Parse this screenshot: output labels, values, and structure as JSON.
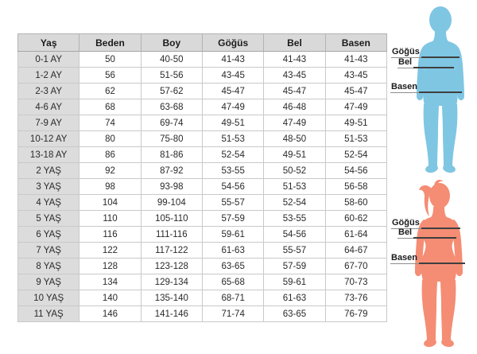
{
  "table": {
    "headers": [
      "Yaş",
      "Beden",
      "Boy",
      "Göğüs",
      "Bel",
      "Basen"
    ],
    "rows": [
      [
        "0-1 AY",
        "50",
        "40-50",
        "41-43",
        "41-43",
        "41-43"
      ],
      [
        "1-2 AY",
        "56",
        "51-56",
        "43-45",
        "43-45",
        "43-45"
      ],
      [
        "2-3 AY",
        "62",
        "57-62",
        "45-47",
        "45-47",
        "45-47"
      ],
      [
        "4-6 AY",
        "68",
        "63-68",
        "47-49",
        "46-48",
        "47-49"
      ],
      [
        "7-9 AY",
        "74",
        "69-74",
        "49-51",
        "47-49",
        "49-51"
      ],
      [
        "10-12 AY",
        "80",
        "75-80",
        "51-53",
        "48-50",
        "51-53"
      ],
      [
        "13-18 AY",
        "86",
        "81-86",
        "52-54",
        "49-51",
        "52-54"
      ],
      [
        "2 YAŞ",
        "92",
        "87-92",
        "53-55",
        "50-52",
        "54-56"
      ],
      [
        "3 YAŞ",
        "98",
        "93-98",
        "54-56",
        "51-53",
        "56-58"
      ],
      [
        "4 YAŞ",
        "104",
        "99-104",
        "55-57",
        "52-54",
        "58-60"
      ],
      [
        "5 YAŞ",
        "110",
        "105-110",
        "57-59",
        "53-55",
        "60-62"
      ],
      [
        "6 YAŞ",
        "116",
        "111-116",
        "59-61",
        "54-56",
        "61-64"
      ],
      [
        "7 YAŞ",
        "122",
        "117-122",
        "61-63",
        "55-57",
        "64-67"
      ],
      [
        "8 YAŞ",
        "128",
        "123-128",
        "63-65",
        "57-59",
        "67-70"
      ],
      [
        "9 YAŞ",
        "134",
        "129-134",
        "65-68",
        "59-61",
        "70-73"
      ],
      [
        "10 YAŞ",
        "140",
        "135-140",
        "68-71",
        "61-63",
        "73-76"
      ],
      [
        "11 YAŞ",
        "146",
        "141-146",
        "71-74",
        "63-65",
        "76-79"
      ]
    ]
  },
  "figures": {
    "boy": {
      "color": "#7fc6e3",
      "measurements": {
        "chest": "Göğüs",
        "waist": "Bel",
        "hips": "Basen"
      }
    },
    "girl": {
      "color": "#f48d74",
      "measurements": {
        "chest": "Göğüs",
        "waist": "Bel",
        "hips": "Basen"
      }
    }
  },
  "colors": {
    "header_bg": "#d9d9d9",
    "row_label_bg": "#dcdcdc",
    "cell_bg": "#ffffff",
    "cell_border": "#c9c9c9",
    "outer_border": "#a8a8a8",
    "text": "#2a2a2a",
    "measure_line": "#3f3f3f"
  }
}
